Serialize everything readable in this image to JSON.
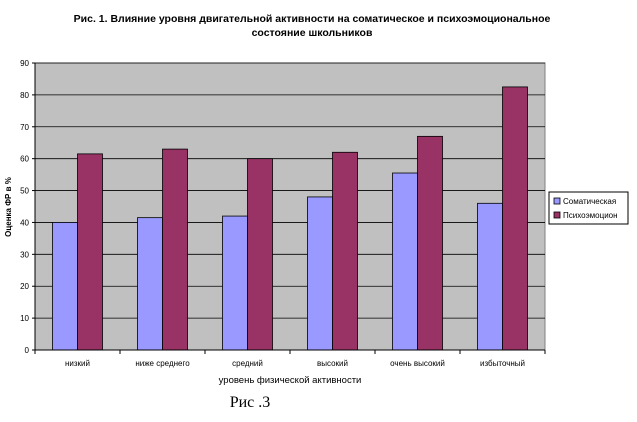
{
  "figure_caption": "Рис .3",
  "colors": {
    "plot_bg": "#c0c0c0",
    "series_1": "#9999ff",
    "series_2": "#993366",
    "bar_stroke": "#000000",
    "grid": "#000000"
  },
  "chart_data": {
    "type": "bar",
    "title_line1": "Рис. 1. Влияние уровня двигательной активности на соматическое и психоэмоциональное",
    "title_line2": "состояние школьников",
    "xlabel": "уровень физической активности",
    "ylabel": "Оценка ФР в %",
    "ylim": [
      0,
      90
    ],
    "yticks": [
      "0",
      "10",
      "20",
      "30",
      "40",
      "50",
      "60",
      "70",
      "80",
      "90"
    ],
    "categories": [
      "низкий",
      "ниже среднего",
      "средний",
      "высокий",
      "очень высокий",
      "избыточный"
    ],
    "grid": true,
    "legend_position": "right",
    "series": [
      {
        "name": "Соматическая",
        "values": [
          40,
          41.5,
          42,
          48,
          55.5,
          46
        ]
      },
      {
        "name": "Психоэмоцион",
        "values": [
          61.5,
          63,
          60,
          62,
          67,
          82.5
        ]
      }
    ]
  }
}
